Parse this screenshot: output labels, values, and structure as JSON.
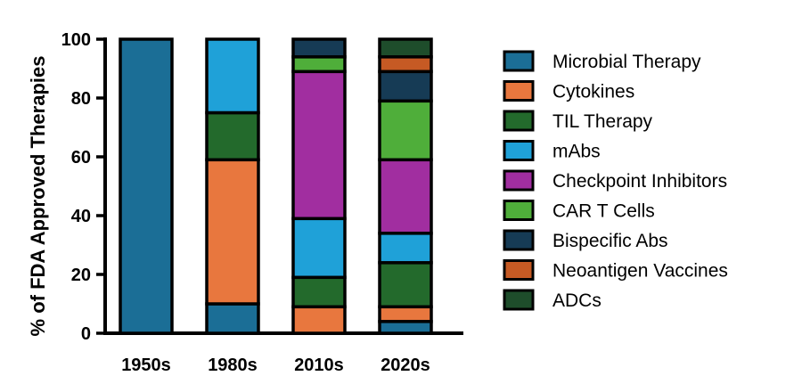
{
  "chart_data": {
    "type": "bar",
    "stacked": true,
    "title": "",
    "xlabel": "",
    "ylabel": "% of FDA Approved Therapies",
    "ylim": [
      0,
      100
    ],
    "yticks": [
      0,
      20,
      40,
      60,
      80,
      100
    ],
    "categories": [
      "1950s",
      "1980s",
      "2010s",
      "2020s"
    ],
    "series": [
      {
        "name": "Microbial Therapy",
        "color": "#1b6e96",
        "values": [
          100,
          10,
          0,
          4
        ]
      },
      {
        "name": "Cytokines",
        "color": "#e8773e",
        "values": [
          0,
          49,
          9,
          5
        ]
      },
      {
        "name": "TIL Therapy",
        "color": "#236a2c",
        "values": [
          0,
          16,
          10,
          15
        ]
      },
      {
        "name": "mAbs",
        "color": "#1fa1d8",
        "values": [
          0,
          25,
          20,
          10
        ]
      },
      {
        "name": "Checkpoint Inhibitors",
        "color": "#a12ea0",
        "values": [
          0,
          0,
          50,
          25
        ]
      },
      {
        "name": "CAR T Cells",
        "color": "#4fae3a",
        "values": [
          0,
          0,
          5,
          20
        ]
      },
      {
        "name": "Bispecific Abs",
        "color": "#163b55",
        "values": [
          0,
          0,
          6,
          10
        ]
      },
      {
        "name": "Neoantigen Vaccines",
        "color": "#c65a24",
        "values": [
          0,
          0,
          0,
          5
        ]
      },
      {
        "name": "ADCs",
        "color": "#1e4d2b",
        "values": [
          0,
          0,
          0,
          6
        ]
      }
    ],
    "legend_position": "right",
    "grid": false
  }
}
